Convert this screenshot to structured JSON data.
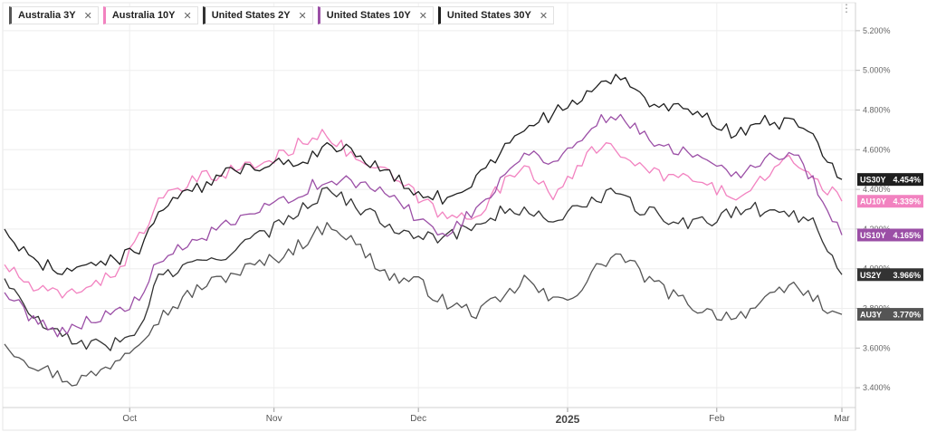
{
  "chart_data": {
    "type": "line",
    "x_axis": {
      "ticks": [
        {
          "label": "Oct",
          "major": false
        },
        {
          "label": "Nov",
          "major": false
        },
        {
          "label": "Dec",
          "major": false
        },
        {
          "label": "2025",
          "major": true
        },
        {
          "label": "Feb",
          "major": false
        },
        {
          "label": "Mar",
          "major": false
        }
      ],
      "tick_points": [
        26,
        56,
        86,
        117,
        148,
        174
      ]
    },
    "y_axis": {
      "min": 3.3,
      "max": 5.3,
      "ticks": [
        3.4,
        3.6,
        3.8,
        4.0,
        4.2,
        4.4,
        4.6,
        4.8,
        5.0,
        5.2
      ],
      "tick_labels": [
        "3.400%",
        "3.600%",
        "3.800%",
        "4.000%",
        "4.200%",
        "4.400%",
        "4.600%",
        "4.800%",
        "5.000%",
        "5.200%"
      ],
      "position": "right"
    },
    "grid": true,
    "legend_position": "top-left",
    "series": [
      {
        "key": "au3y",
        "name": "Australia 3Y",
        "tag": "AU3Y",
        "value_label": "3.770%",
        "color": "#555555",
        "anchors": [
          [
            0,
            3.62
          ],
          [
            6,
            3.52
          ],
          [
            14,
            3.43
          ],
          [
            20,
            3.48
          ],
          [
            26,
            3.6
          ],
          [
            32,
            3.75
          ],
          [
            40,
            3.9
          ],
          [
            48,
            3.98
          ],
          [
            56,
            4.05
          ],
          [
            60,
            4.1
          ],
          [
            68,
            4.23
          ],
          [
            74,
            4.1
          ],
          [
            80,
            3.96
          ],
          [
            86,
            3.93
          ],
          [
            92,
            3.82
          ],
          [
            98,
            3.78
          ],
          [
            104,
            3.85
          ],
          [
            108,
            3.95
          ],
          [
            114,
            3.83
          ],
          [
            120,
            3.9
          ],
          [
            124,
            4.03
          ],
          [
            128,
            4.07
          ],
          [
            134,
            3.94
          ],
          [
            140,
            3.85
          ],
          [
            146,
            3.78
          ],
          [
            152,
            3.76
          ],
          [
            158,
            3.83
          ],
          [
            164,
            3.92
          ],
          [
            170,
            3.82
          ],
          [
            174,
            3.77
          ]
        ]
      },
      {
        "key": "au10y",
        "name": "Australia 10Y",
        "tag": "AU10Y",
        "value_label": "4.339%",
        "color": "#f282c0",
        "anchors": [
          [
            0,
            4.02
          ],
          [
            6,
            3.9
          ],
          [
            12,
            3.86
          ],
          [
            18,
            3.93
          ],
          [
            22,
            3.95
          ],
          [
            26,
            4.08
          ],
          [
            32,
            4.33
          ],
          [
            40,
            4.45
          ],
          [
            48,
            4.5
          ],
          [
            56,
            4.55
          ],
          [
            62,
            4.64
          ],
          [
            66,
            4.7
          ],
          [
            72,
            4.57
          ],
          [
            80,
            4.47
          ],
          [
            86,
            4.36
          ],
          [
            92,
            4.25
          ],
          [
            98,
            4.28
          ],
          [
            104,
            4.43
          ],
          [
            108,
            4.53
          ],
          [
            114,
            4.38
          ],
          [
            118,
            4.45
          ],
          [
            122,
            4.6
          ],
          [
            126,
            4.65
          ],
          [
            130,
            4.52
          ],
          [
            136,
            4.48
          ],
          [
            142,
            4.45
          ],
          [
            148,
            4.4
          ],
          [
            154,
            4.36
          ],
          [
            158,
            4.47
          ],
          [
            164,
            4.55
          ],
          [
            170,
            4.42
          ],
          [
            174,
            4.34
          ]
        ]
      },
      {
        "key": "us2y",
        "name": "United States 2Y",
        "tag": "US2Y",
        "value_label": "3.966%",
        "color": "#333333",
        "anchors": [
          [
            0,
            3.95
          ],
          [
            6,
            3.75
          ],
          [
            12,
            3.65
          ],
          [
            18,
            3.62
          ],
          [
            24,
            3.62
          ],
          [
            28,
            3.7
          ],
          [
            32,
            3.96
          ],
          [
            40,
            4.02
          ],
          [
            48,
            4.1
          ],
          [
            56,
            4.2
          ],
          [
            62,
            4.32
          ],
          [
            68,
            4.4
          ],
          [
            74,
            4.3
          ],
          [
            80,
            4.22
          ],
          [
            86,
            4.18
          ],
          [
            92,
            4.15
          ],
          [
            98,
            4.23
          ],
          [
            104,
            4.3
          ],
          [
            110,
            4.27
          ],
          [
            116,
            4.25
          ],
          [
            122,
            4.35
          ],
          [
            126,
            4.38
          ],
          [
            132,
            4.3
          ],
          [
            138,
            4.25
          ],
          [
            144,
            4.22
          ],
          [
            150,
            4.28
          ],
          [
            156,
            4.3
          ],
          [
            162,
            4.28
          ],
          [
            168,
            4.25
          ],
          [
            174,
            3.97
          ]
        ]
      },
      {
        "key": "us10y",
        "name": "United States 10Y",
        "tag": "US10Y",
        "value_label": "4.165%",
        "color": "#9b4fa6",
        "anchors": [
          [
            0,
            3.88
          ],
          [
            6,
            3.75
          ],
          [
            12,
            3.68
          ],
          [
            18,
            3.75
          ],
          [
            24,
            3.78
          ],
          [
            28,
            3.85
          ],
          [
            32,
            4.03
          ],
          [
            40,
            4.15
          ],
          [
            48,
            4.23
          ],
          [
            56,
            4.32
          ],
          [
            62,
            4.4
          ],
          [
            68,
            4.45
          ],
          [
            74,
            4.42
          ],
          [
            80,
            4.38
          ],
          [
            86,
            4.25
          ],
          [
            92,
            4.18
          ],
          [
            98,
            4.3
          ],
          [
            104,
            4.48
          ],
          [
            108,
            4.58
          ],
          [
            114,
            4.55
          ],
          [
            120,
            4.65
          ],
          [
            124,
            4.75
          ],
          [
            128,
            4.78
          ],
          [
            134,
            4.65
          ],
          [
            140,
            4.6
          ],
          [
            146,
            4.57
          ],
          [
            152,
            4.48
          ],
          [
            158,
            4.55
          ],
          [
            164,
            4.58
          ],
          [
            168,
            4.45
          ],
          [
            174,
            4.17
          ]
        ]
      },
      {
        "key": "us30y",
        "name": "United States 30Y",
        "tag": "US30Y",
        "value_label": "4.454%",
        "color": "#1f1f1f",
        "anchors": [
          [
            0,
            4.2
          ],
          [
            6,
            4.03
          ],
          [
            12,
            4.0
          ],
          [
            18,
            4.02
          ],
          [
            24,
            4.05
          ],
          [
            28,
            4.1
          ],
          [
            32,
            4.3
          ],
          [
            40,
            4.4
          ],
          [
            48,
            4.5
          ],
          [
            56,
            4.54
          ],
          [
            62,
            4.55
          ],
          [
            68,
            4.62
          ],
          [
            74,
            4.58
          ],
          [
            80,
            4.47
          ],
          [
            86,
            4.38
          ],
          [
            92,
            4.35
          ],
          [
            98,
            4.45
          ],
          [
            104,
            4.62
          ],
          [
            108,
            4.72
          ],
          [
            114,
            4.78
          ],
          [
            120,
            4.85
          ],
          [
            124,
            4.93
          ],
          [
            128,
            4.98
          ],
          [
            134,
            4.85
          ],
          [
            140,
            4.8
          ],
          [
            146,
            4.75
          ],
          [
            152,
            4.68
          ],
          [
            158,
            4.75
          ],
          [
            164,
            4.72
          ],
          [
            168,
            4.65
          ],
          [
            174,
            4.45
          ]
        ]
      }
    ]
  }
}
